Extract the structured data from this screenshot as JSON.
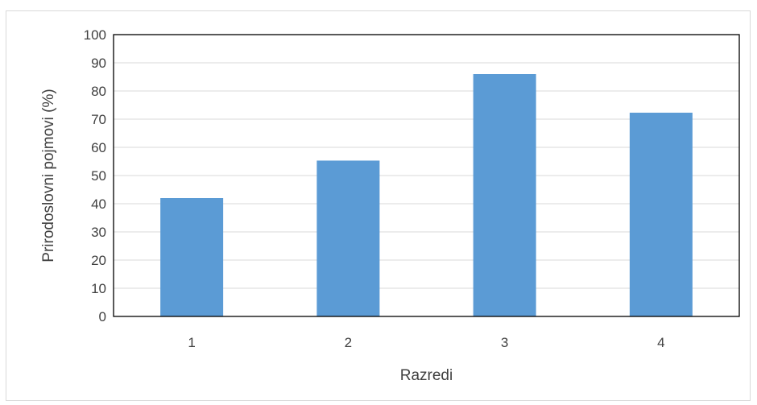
{
  "chart_data": {
    "type": "bar",
    "title": "",
    "xlabel": "Razredi",
    "ylabel": "Prirodoslovni pojmovi (%)",
    "categories": [
      "1",
      "2",
      "3",
      "4"
    ],
    "values": [
      42,
      55.3,
      86,
      72.3
    ],
    "ylim": [
      0,
      100
    ],
    "yticks": [
      "0",
      "10",
      "20",
      "30",
      "40",
      "50",
      "60",
      "70",
      "80",
      "90",
      "100"
    ],
    "grid": true,
    "legend": "none",
    "bar_color": "#5b9bd5",
    "grid_color": "#d9d9d9",
    "axis_color": "#000000"
  }
}
